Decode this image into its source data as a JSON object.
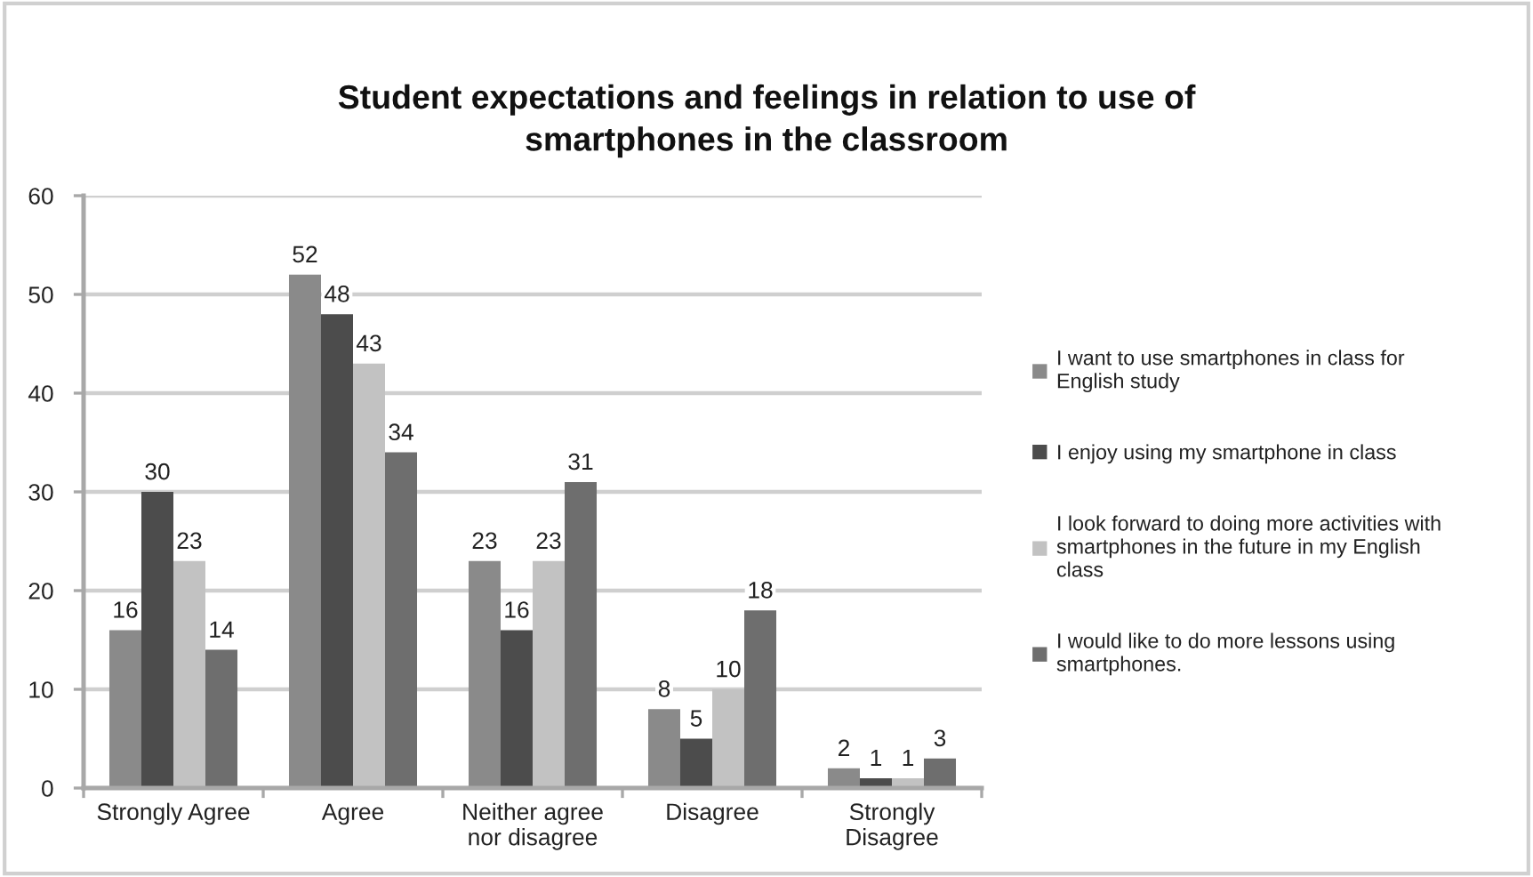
{
  "chart_data": {
    "type": "bar",
    "title": "Student expectations and feelings in relation to use of\nsmartphones in the classroom",
    "categories": [
      "Strongly Agree",
      "Agree",
      "Neither agree\nnor disagree",
      "Disagree",
      "Strongly\nDisagree"
    ],
    "series": [
      {
        "name": "I want to use smartphones in class for\nEnglish study",
        "color": "#8a8a8a",
        "values": [
          16,
          52,
          23,
          8,
          2
        ]
      },
      {
        "name": "I enjoy using my smartphone in class",
        "color": "#4c4c4c",
        "values": [
          30,
          48,
          16,
          5,
          1
        ]
      },
      {
        "name": "I look forward to doing more activities with\nsmartphones in the future in my English\nclass",
        "color": "#c2c2c2",
        "values": [
          23,
          43,
          23,
          10,
          1
        ]
      },
      {
        "name": "I would like to do more lessons using\nsmartphones.",
        "color": "#6e6e6e",
        "values": [
          14,
          34,
          31,
          18,
          3
        ]
      }
    ],
    "ylim": [
      0,
      60
    ],
    "yticks": [
      0,
      10,
      20,
      30,
      40,
      50,
      60
    ],
    "grid": "y",
    "legend": "right",
    "data_labels": true
  }
}
